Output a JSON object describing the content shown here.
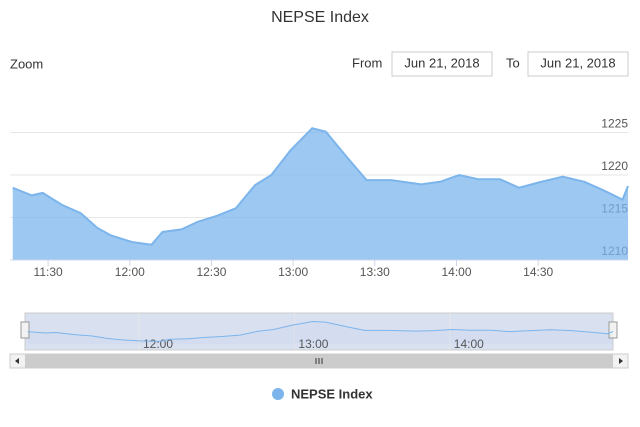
{
  "chart_data": {
    "type": "area",
    "title": "NEPSE Index",
    "zoom_label": "Zoom",
    "from_label": "From",
    "from_date": "Jun 21, 2018",
    "to_label": "To",
    "to_date": "Jun 21, 2018",
    "x": [
      "11:17",
      "11:24",
      "11:28",
      "11:35",
      "11:42",
      "11:48",
      "11:53",
      "12:01",
      "12:08",
      "12:12",
      "12:19",
      "12:25",
      "12:32",
      "12:39",
      "12:46",
      "12:52",
      "12:59",
      "13:07",
      "13:12",
      "13:20",
      "13:27",
      "13:36",
      "13:47",
      "13:54",
      "14:01",
      "14:08",
      "14:16",
      "14:23",
      "14:30",
      "14:39",
      "14:47",
      "14:54",
      "15:01",
      "15:03"
    ],
    "series": [
      {
        "name": "NEPSE Index",
        "color": "#7cb5ec",
        "values": [
          1218.5,
          1217.6,
          1217.9,
          1216.5,
          1215.5,
          1213.8,
          1212.9,
          1212.1,
          1211.8,
          1213.3,
          1213.6,
          1214.5,
          1215.2,
          1216.1,
          1218.8,
          1220.0,
          1222.9,
          1225.5,
          1225.1,
          1222.0,
          1219.4,
          1219.4,
          1218.9,
          1219.2,
          1220.0,
          1219.5,
          1219.5,
          1218.5,
          1219.1,
          1219.8,
          1219.2,
          1218.2,
          1217.1,
          1218.7
        ]
      }
    ],
    "xlim": [
      "11:16",
      "15:03"
    ],
    "xticks": [
      "11:30",
      "12:00",
      "12:30",
      "13:00",
      "13:30",
      "14:00",
      "14:30"
    ],
    "ylim": [
      1210,
      1230
    ],
    "yticks": [
      1210,
      1215,
      1220,
      1225
    ],
    "navigator_xticks": [
      "12:00",
      "13:00",
      "14:00"
    ],
    "grid": true
  }
}
